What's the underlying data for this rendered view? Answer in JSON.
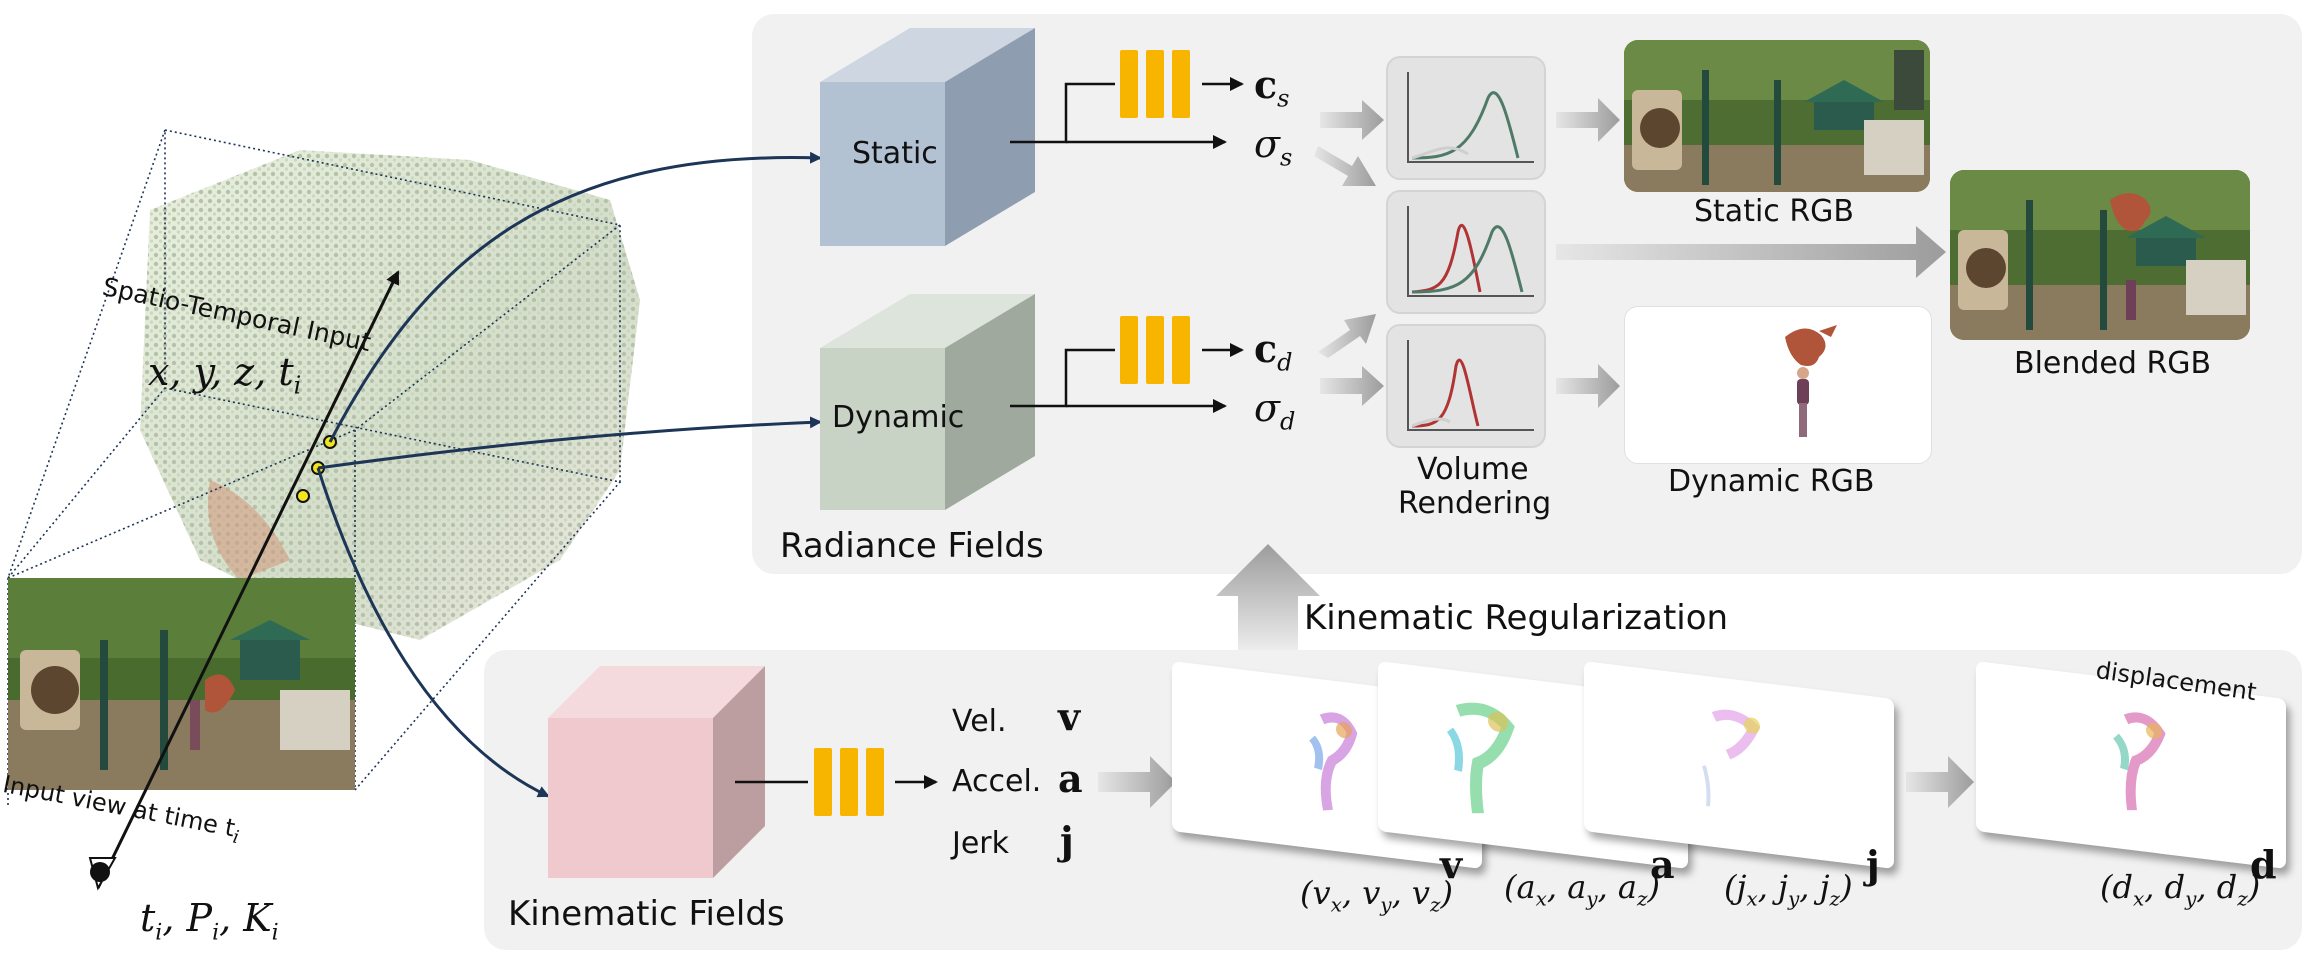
{
  "colors": {
    "panel": "#f1f1f1",
    "mlp": "#f7b500",
    "static_cube": "#b3c2d3",
    "dynamic_cube": "#c8d3c6",
    "kinematic_cube": "#efc9cd",
    "arrow_blue": "#1d3557",
    "grey_arrow": "#9b9b9b",
    "curve_green": "#4f7a67",
    "curve_red": "#b03434"
  },
  "input": {
    "spatio_temporal": "Spatio-Temporal Input",
    "coords": "x, y, z, t",
    "coords_sub": "i",
    "view_caption": "Input view at time t",
    "view_caption_sub": "i",
    "camera": "t",
    "camera_rest": ", P",
    "camera_rest2": ", K",
    "sub_i": "i"
  },
  "radiance": {
    "title": "Radiance Fields",
    "static": "Static",
    "dynamic": "Dynamic",
    "cs": "c",
    "sigma": "σ",
    "sub_s": "s",
    "sub_d": "d",
    "volume_rendering_1": "Volume",
    "volume_rendering_2": "Rendering",
    "static_rgb": "Static RGB",
    "dynamic_rgb": "Dynamic RGB",
    "blended_rgb": "Blended RGB"
  },
  "kinematic": {
    "title": "Kinematic Fields",
    "regularization": "Kinematic Regularization",
    "vel": "Vel.",
    "accel": "Accel.",
    "jerk": "Jerk",
    "v": "v",
    "a": "a",
    "j": "j",
    "d": "d",
    "displacement": "displacement",
    "v_comp": "(v",
    "a_comp": "(a",
    "j_comp": "(j",
    "d_comp": "(d"
  }
}
